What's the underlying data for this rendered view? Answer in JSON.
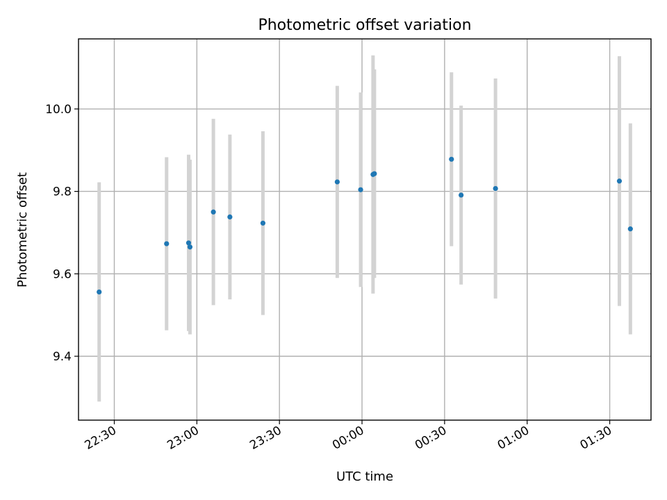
{
  "chart_data": {
    "type": "scatter",
    "title": "Photometric offset variation",
    "xlabel": "UTC time",
    "ylabel": "Photometric offset",
    "xlim": [
      "22:17",
      "01:45"
    ],
    "ylim": [
      9.245,
      10.17
    ],
    "grid": true,
    "x_ticks": [
      "22:30",
      "23:00",
      "23:30",
      "00:00",
      "00:30",
      "01:00",
      "01:30"
    ],
    "y_ticks": [
      "9.4",
      "9.6",
      "9.8",
      "10.0"
    ],
    "colors": {
      "point": "#1f77b4",
      "errorbar": "#d3d3d3"
    },
    "series": [
      {
        "x": [
          "22:24:30",
          "22:49:00",
          "22:57:00",
          "22:57:30",
          "23:06:00",
          "23:12:00",
          "23:24:00",
          "23:51:00",
          "23:59:30",
          "00:04:00",
          "00:04:30",
          "00:32:30",
          "00:36:00",
          "00:48:30",
          "01:33:30",
          "01:37:30"
        ],
        "y": [
          9.556,
          9.673,
          9.675,
          9.665,
          9.75,
          9.738,
          9.723,
          9.823,
          9.804,
          9.841,
          9.843,
          9.878,
          9.791,
          9.807,
          9.825,
          9.709
        ],
        "yerr": [
          0.266,
          0.21,
          0.214,
          0.212,
          0.226,
          0.2,
          0.223,
          0.233,
          0.236,
          0.289,
          0.253,
          0.211,
          0.217,
          0.267,
          0.303,
          0.256
        ]
      }
    ]
  }
}
